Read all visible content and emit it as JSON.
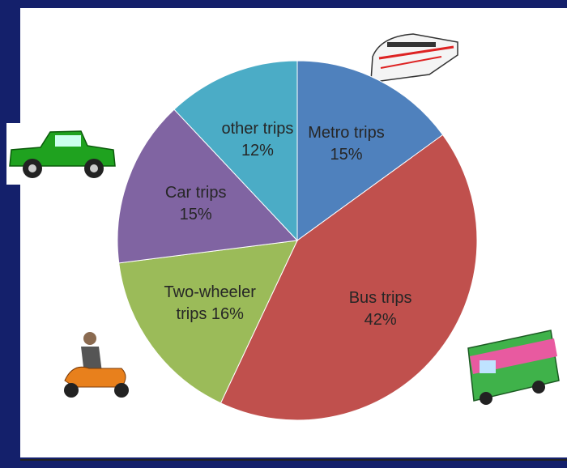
{
  "chart_data": {
    "type": "pie",
    "categories": [
      "Metro trips",
      "Bus trips",
      "Two-wheeler trips",
      "Car trips",
      "other trips"
    ],
    "values": [
      15,
      42,
      16,
      15,
      12
    ],
    "value_labels": [
      "15%",
      "42%",
      "16%",
      "15%",
      "12%"
    ],
    "colors": [
      "#4f81bd",
      "#c0504d",
      "#9bbb59",
      "#8064a2",
      "#4bacc6"
    ]
  }
}
